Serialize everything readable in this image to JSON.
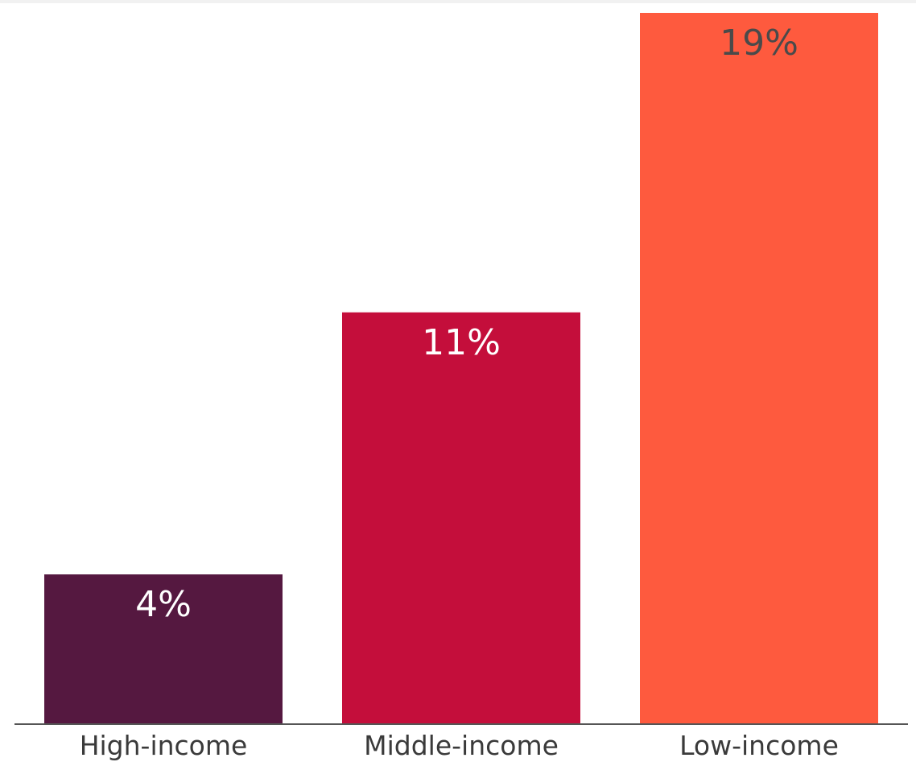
{
  "chart_data": {
    "type": "bar",
    "categories": [
      "High-income",
      "Middle-income",
      "Low-income"
    ],
    "values": [
      4,
      11,
      19
    ],
    "data_labels": [
      "4%",
      "11%",
      "19%"
    ],
    "ylim": [
      0,
      19
    ],
    "grid": false,
    "title": "",
    "xlabel": "",
    "ylabel": "",
    "colors": [
      "#551840",
      "#c40e3b",
      "#fe5a3e"
    ],
    "label_colors": [
      "#ffffff",
      "#ffffff",
      "#4a4a4a"
    ],
    "axis_color": "#555555"
  }
}
